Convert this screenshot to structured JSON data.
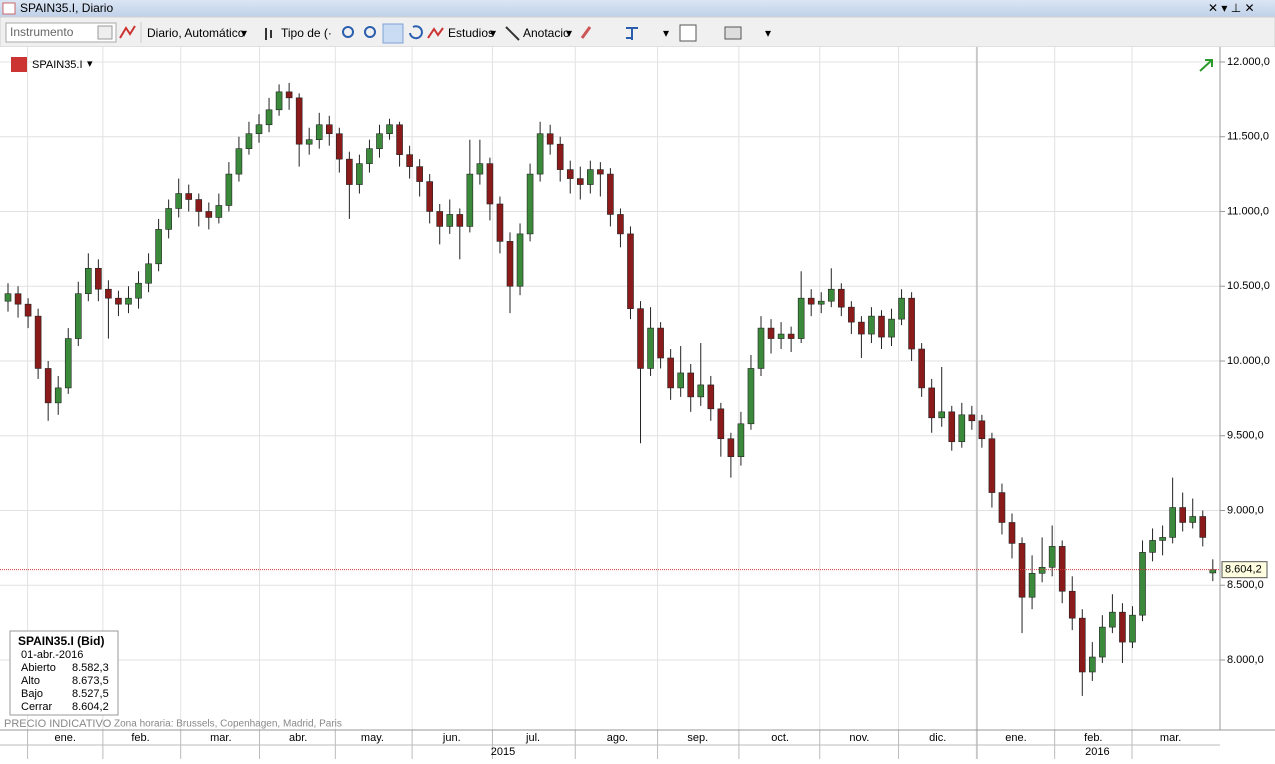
{
  "window": {
    "title": "SPAIN35.I, Diario"
  },
  "toolbar": {
    "instrument_placeholder": "Instrumento",
    "period": "Diario,  Automático",
    "chart_type": "Tipo de (·",
    "studies": "Estudios",
    "annotation": "Anotacio"
  },
  "chart_data": {
    "type": "candlestick",
    "symbol": "SPAIN35.I",
    "up_color": "#3b8a3b",
    "down_color": "#8b1a1a",
    "grid": true,
    "ylim": [
      7532,
      12100
    ],
    "yticks": [
      {
        "value": 8000,
        "label": "8.000,0"
      },
      {
        "value": 8500,
        "label": "8.500,0"
      },
      {
        "value": 9000,
        "label": "9.000,0"
      },
      {
        "value": 9500,
        "label": "9.500,0"
      },
      {
        "value": 10000,
        "label": "10.000,0"
      },
      {
        "value": 10500,
        "label": "10.500,0"
      },
      {
        "value": 11000,
        "label": "11.000,0"
      },
      {
        "value": 11500,
        "label": "11.500,0"
      },
      {
        "value": 12000,
        "label": "12.000,0"
      }
    ],
    "xticks": [
      {
        "value": 5.7,
        "label": "ene."
      },
      {
        "value": 13.2,
        "label": "feb."
      },
      {
        "value": 21.2,
        "label": "mar."
      },
      {
        "value": 28.9,
        "label": "abr."
      },
      {
        "value": 36.3,
        "label": "may."
      },
      {
        "value": 44.2,
        "label": "jun."
      },
      {
        "value": 52.3,
        "label": "jul."
      },
      {
        "value": 60.7,
        "label": "ago."
      },
      {
        "value": 68.7,
        "label": "sep."
      },
      {
        "value": 76.9,
        "label": "oct."
      },
      {
        "value": 84.8,
        "label": "nov."
      },
      {
        "value": 92.6,
        "label": "dic."
      },
      {
        "value": 100.4,
        "label": "ene."
      },
      {
        "value": 108.1,
        "label": "feb."
      },
      {
        "value": 115.8,
        "label": "mar."
      }
    ],
    "year_ticks": [
      {
        "value": 49.3,
        "label": "2015"
      },
      {
        "value": 108.5,
        "label": "2016"
      }
    ],
    "last_price": {
      "value": 8604.2,
      "label": "8.604,2"
    },
    "candles": [
      [
        10400,
        10520,
        10330,
        10450
      ],
      [
        10450,
        10500,
        10290,
        10380
      ],
      [
        10380,
        10420,
        10220,
        10300
      ],
      [
        10300,
        10350,
        9880,
        9950
      ],
      [
        9950,
        10000,
        9600,
        9720
      ],
      [
        9720,
        9900,
        9640,
        9820
      ],
      [
        9820,
        10220,
        9780,
        10150
      ],
      [
        10150,
        10530,
        10100,
        10450
      ],
      [
        10450,
        10720,
        10400,
        10620
      ],
      [
        10620,
        10680,
        10400,
        10480
      ],
      [
        10480,
        10540,
        10150,
        10420
      ],
      [
        10420,
        10470,
        10300,
        10380
      ],
      [
        10380,
        10500,
        10320,
        10420
      ],
      [
        10420,
        10600,
        10350,
        10520
      ],
      [
        10520,
        10720,
        10460,
        10650
      ],
      [
        10650,
        10950,
        10600,
        10880
      ],
      [
        10880,
        11080,
        10820,
        11020
      ],
      [
        11020,
        11220,
        10960,
        11120
      ],
      [
        11120,
        11180,
        11000,
        11080
      ],
      [
        11080,
        11120,
        10900,
        11000
      ],
      [
        11000,
        11060,
        10880,
        10960
      ],
      [
        10960,
        11120,
        10920,
        11040
      ],
      [
        11040,
        11330,
        11000,
        11250
      ],
      [
        11250,
        11500,
        11200,
        11420
      ],
      [
        11420,
        11600,
        11380,
        11520
      ],
      [
        11520,
        11650,
        11460,
        11580
      ],
      [
        11580,
        11760,
        11530,
        11680
      ],
      [
        11680,
        11850,
        11640,
        11800
      ],
      [
        11800,
        11860,
        11680,
        11760
      ],
      [
        11760,
        11790,
        11300,
        11450
      ],
      [
        11450,
        11560,
        11380,
        11480
      ],
      [
        11480,
        11660,
        11420,
        11580
      ],
      [
        11580,
        11640,
        11440,
        11520
      ],
      [
        11520,
        11560,
        11260,
        11350
      ],
      [
        11350,
        11400,
        10950,
        11180
      ],
      [
        11180,
        11380,
        11120,
        11320
      ],
      [
        11320,
        11480,
        11260,
        11420
      ],
      [
        11420,
        11580,
        11360,
        11520
      ],
      [
        11520,
        11620,
        11480,
        11580
      ],
      [
        11580,
        11600,
        11300,
        11380
      ],
      [
        11380,
        11440,
        11220,
        11300
      ],
      [
        11300,
        11350,
        11100,
        11200
      ],
      [
        11200,
        11250,
        10920,
        11000
      ],
      [
        11000,
        11050,
        10780,
        10900
      ],
      [
        10900,
        11080,
        10850,
        10980
      ],
      [
        10980,
        11020,
        10680,
        10900
      ],
      [
        10900,
        11480,
        10860,
        11250
      ],
      [
        11250,
        11480,
        11180,
        11320
      ],
      [
        11320,
        11360,
        10940,
        11050
      ],
      [
        11050,
        11100,
        10720,
        10800
      ],
      [
        10800,
        10860,
        10320,
        10500
      ],
      [
        10500,
        10920,
        10440,
        10850
      ],
      [
        10850,
        11320,
        10800,
        11250
      ],
      [
        11250,
        11600,
        11200,
        11520
      ],
      [
        11520,
        11580,
        11380,
        11450
      ],
      [
        11450,
        11500,
        11200,
        11280
      ],
      [
        11280,
        11340,
        11120,
        11220
      ],
      [
        11220,
        11300,
        11080,
        11180
      ],
      [
        11180,
        11340,
        11120,
        11280
      ],
      [
        11280,
        11330,
        11100,
        11250
      ],
      [
        11250,
        11290,
        10900,
        10980
      ],
      [
        10980,
        11020,
        10760,
        10850
      ],
      [
        10850,
        10900,
        10280,
        10350
      ],
      [
        10350,
        10400,
        9450,
        9950
      ],
      [
        9950,
        10360,
        9900,
        10220
      ],
      [
        10220,
        10260,
        9950,
        10020
      ],
      [
        10020,
        10080,
        9740,
        9820
      ],
      [
        9820,
        10100,
        9760,
        9920
      ],
      [
        9920,
        9980,
        9660,
        9760
      ],
      [
        9760,
        10120,
        9700,
        9840
      ],
      [
        9840,
        9900,
        9600,
        9680
      ],
      [
        9680,
        9720,
        9360,
        9480
      ],
      [
        9480,
        9520,
        9220,
        9360
      ],
      [
        9360,
        9660,
        9300,
        9580
      ],
      [
        9580,
        10040,
        9540,
        9950
      ],
      [
        9950,
        10300,
        9900,
        10220
      ],
      [
        10220,
        10280,
        10050,
        10150
      ],
      [
        10150,
        10260,
        10080,
        10180
      ],
      [
        10180,
        10230,
        10060,
        10150
      ],
      [
        10150,
        10600,
        10120,
        10420
      ],
      [
        10420,
        10480,
        10300,
        10380
      ],
      [
        10380,
        10460,
        10320,
        10400
      ],
      [
        10400,
        10620,
        10360,
        10480
      ],
      [
        10480,
        10520,
        10300,
        10360
      ],
      [
        10360,
        10400,
        10180,
        10260
      ],
      [
        10260,
        10300,
        10020,
        10180
      ],
      [
        10180,
        10360,
        10120,
        10300
      ],
      [
        10300,
        10340,
        10080,
        10160
      ],
      [
        10160,
        10350,
        10100,
        10280
      ],
      [
        10280,
        10480,
        10240,
        10420
      ],
      [
        10420,
        10460,
        10000,
        10080
      ],
      [
        10080,
        10120,
        9760,
        9820
      ],
      [
        9820,
        9880,
        9520,
        9620
      ],
      [
        9620,
        9960,
        9560,
        9660
      ],
      [
        9660,
        9700,
        9400,
        9460
      ],
      [
        9460,
        9720,
        9420,
        9640
      ],
      [
        9640,
        9700,
        9540,
        9600
      ],
      [
        9600,
        9640,
        9420,
        9480
      ],
      [
        9480,
        9520,
        9020,
        9120
      ],
      [
        9120,
        9180,
        8840,
        8920
      ],
      [
        8920,
        8980,
        8680,
        8780
      ],
      [
        8780,
        8820,
        8180,
        8420
      ],
      [
        8420,
        8700,
        8340,
        8580
      ],
      [
        8580,
        8820,
        8520,
        8620
      ],
      [
        8620,
        8900,
        8560,
        8760
      ],
      [
        8760,
        8800,
        8380,
        8460
      ],
      [
        8460,
        8560,
        8200,
        8280
      ],
      [
        8280,
        8340,
        7760,
        7920
      ],
      [
        7920,
        8120,
        7860,
        8020
      ],
      [
        8020,
        8300,
        7980,
        8220
      ],
      [
        8220,
        8440,
        8180,
        8320
      ],
      [
        8320,
        8380,
        7980,
        8120
      ],
      [
        8120,
        8360,
        8080,
        8300
      ],
      [
        8300,
        8800,
        8260,
        8720
      ],
      [
        8720,
        8880,
        8660,
        8800
      ],
      [
        8800,
        8900,
        8700,
        8820
      ],
      [
        8820,
        9220,
        8780,
        9020
      ],
      [
        9020,
        9120,
        8860,
        8920
      ],
      [
        8920,
        9080,
        8880,
        8960
      ],
      [
        8960,
        9000,
        8760,
        8820
      ],
      [
        8582.3,
        8673.5,
        8527.5,
        8604.2
      ]
    ]
  },
  "info_box": {
    "title": "SPAIN35.I (Bid)",
    "date": "01-abr.-2016",
    "rows": [
      [
        "Abierto",
        "8.582,3"
      ],
      [
        "Alto",
        "8.673,5"
      ],
      [
        "Bajo",
        "8.527,5"
      ],
      [
        "Cerrar",
        "8.604,2"
      ]
    ]
  },
  "footer": {
    "indicative": "PRECIO INDICATIVO",
    "timezone": "Zona horaria: Brussels, Copenhagen, Madrid, Paris"
  }
}
